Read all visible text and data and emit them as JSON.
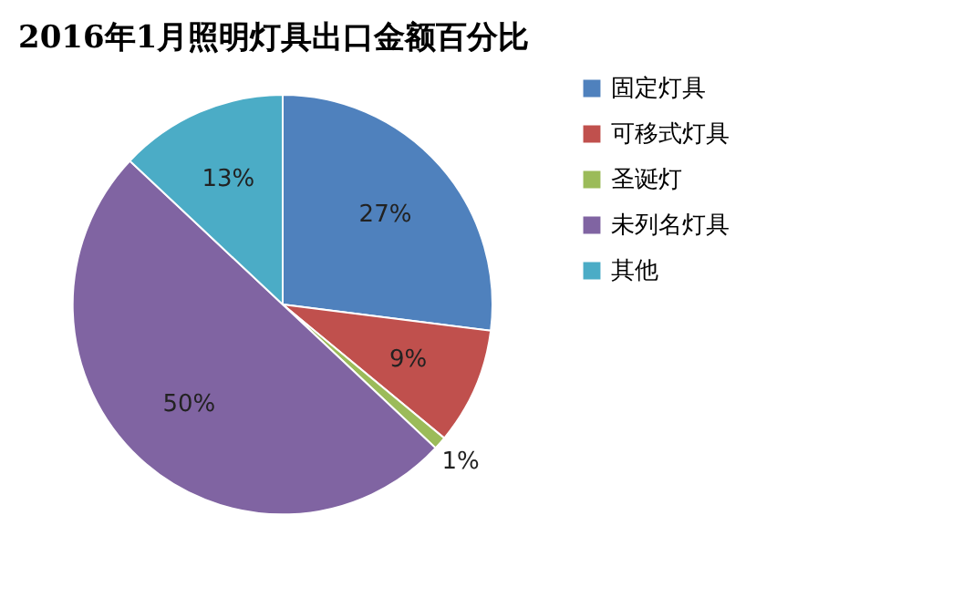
{
  "chart_data": {
    "type": "pie",
    "title": "2016年1月照明灯具出口金额百分比",
    "categories": [
      "固定灯具",
      "可移式灯具",
      "圣诞灯",
      "未列名灯具",
      "其他"
    ],
    "values": [
      27,
      9,
      1,
      50,
      13
    ],
    "colors": [
      "#4f81bd",
      "#c0504d",
      "#9bbb59",
      "#8064a2",
      "#4bacc6"
    ],
    "value_labels": [
      "27%",
      "9%",
      "1%",
      "50%",
      "13%"
    ],
    "legend": "right"
  }
}
